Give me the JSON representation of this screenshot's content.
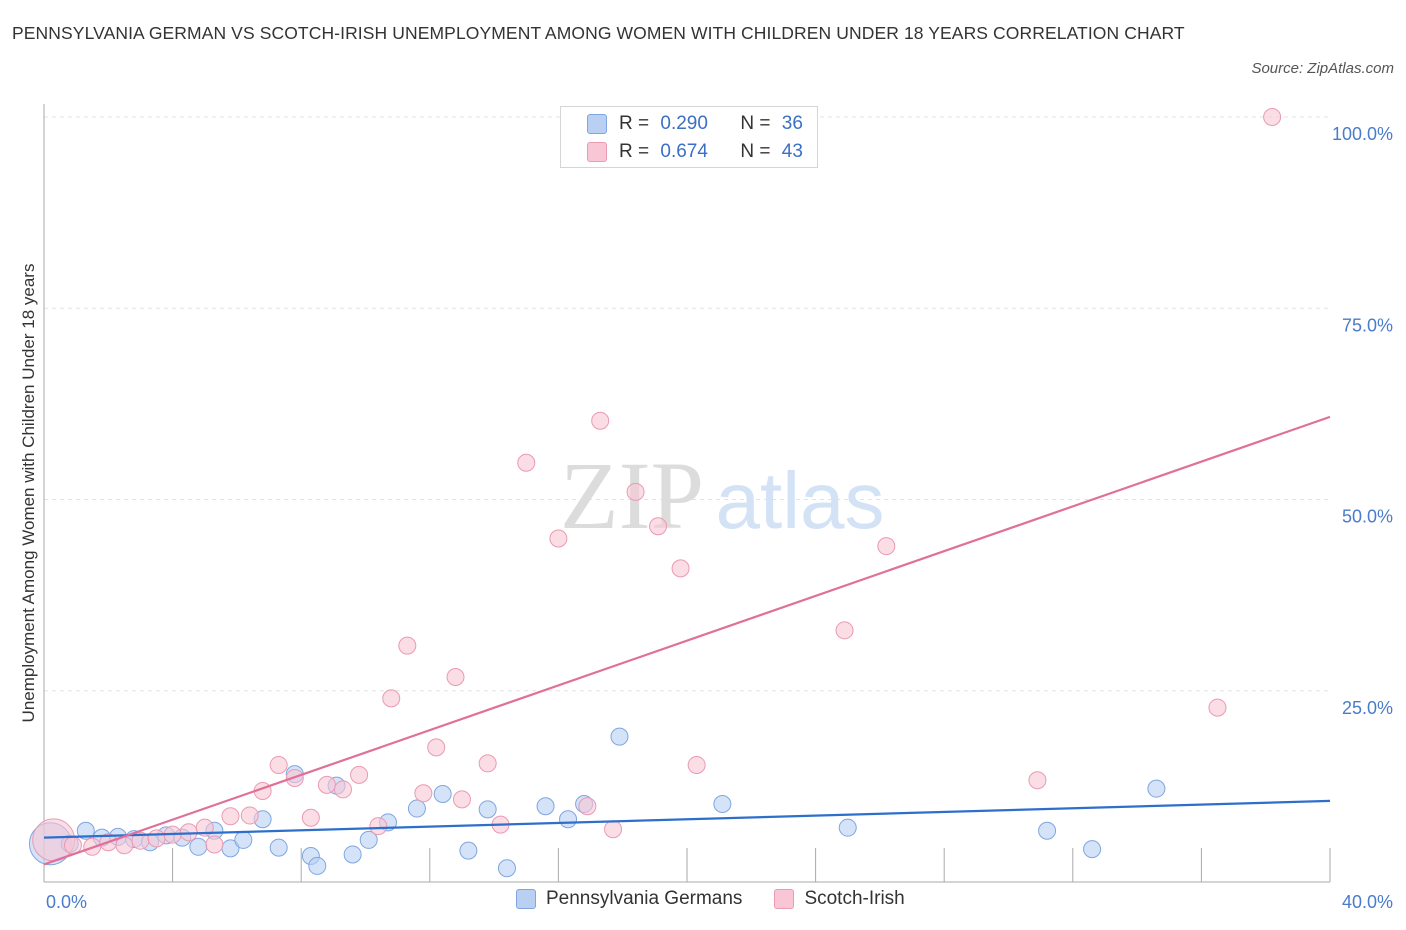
{
  "title": "PENNSYLVANIA GERMAN VS SCOTCH-IRISH UNEMPLOYMENT AMONG WOMEN WITH CHILDREN UNDER 18 YEARS CORRELATION CHART",
  "source": "Source: ZipAtlas.com",
  "watermark": {
    "zip": "ZIP",
    "atlas": "atlas"
  },
  "legend": {
    "rows": [
      {
        "r_label": "R =",
        "r_value": "0.290",
        "n_label": "N =",
        "n_value": "36"
      },
      {
        "r_label": "R =",
        "r_value": "0.674",
        "n_label": "N =",
        "n_value": "43"
      }
    ]
  },
  "colors": {
    "blue_fill": "#b9d0f3",
    "blue_stroke": "#7fa6e0",
    "blue_line": "#2f6fcc",
    "pink_fill": "#f8c6d5",
    "pink_stroke": "#ea9ab2",
    "pink_line": "#e0709a",
    "grid": "#e3e3e3",
    "tick_text": "#4a7cc9"
  },
  "chart_data": {
    "type": "scatter",
    "title": "PENNSYLVANIA GERMAN VS SCOTCH-IRISH UNEMPLOYMENT AMONG WOMEN WITH CHILDREN UNDER 18 YEARS CORRELATION CHART",
    "xlabel": "",
    "ylabel": "Unemployment Among Women with Children Under 18 years",
    "xlim": [
      0,
      40
    ],
    "ylim": [
      0,
      100
    ],
    "x_tick_labels": [
      "0.0%",
      "40.0%"
    ],
    "y_tick_labels": [
      {
        "value": 100,
        "label": "100.0%"
      },
      {
        "value": 75,
        "label": "75.0%"
      },
      {
        "value": 50,
        "label": "50.0%"
      },
      {
        "value": 25,
        "label": "25.0%"
      }
    ],
    "series": [
      {
        "name": "Pennsylvania Germans",
        "color": "blue",
        "R": 0.29,
        "N": 36,
        "trend": {
          "x": [
            0,
            40
          ],
          "y": [
            5.8,
            10.6
          ]
        },
        "points": [
          {
            "x": 0.2,
            "y": 5.0,
            "big": true
          },
          {
            "x": 0.8,
            "y": 5.0
          },
          {
            "x": 1.3,
            "y": 6.7
          },
          {
            "x": 1.8,
            "y": 5.8
          },
          {
            "x": 2.3,
            "y": 5.9
          },
          {
            "x": 2.8,
            "y": 5.6
          },
          {
            "x": 3.3,
            "y": 5.2
          },
          {
            "x": 3.8,
            "y": 6.1
          },
          {
            "x": 4.3,
            "y": 5.8
          },
          {
            "x": 4.8,
            "y": 4.6
          },
          {
            "x": 5.3,
            "y": 6.7
          },
          {
            "x": 5.8,
            "y": 4.4
          },
          {
            "x": 6.2,
            "y": 5.5
          },
          {
            "x": 6.8,
            "y": 8.2
          },
          {
            "x": 7.3,
            "y": 4.5
          },
          {
            "x": 7.8,
            "y": 14.1
          },
          {
            "x": 8.3,
            "y": 3.4
          },
          {
            "x": 8.5,
            "y": 2.1
          },
          {
            "x": 9.1,
            "y": 12.6
          },
          {
            "x": 9.6,
            "y": 3.6
          },
          {
            "x": 10.1,
            "y": 5.5
          },
          {
            "x": 10.7,
            "y": 7.8
          },
          {
            "x": 11.6,
            "y": 9.6
          },
          {
            "x": 12.4,
            "y": 11.5
          },
          {
            "x": 13.2,
            "y": 4.1
          },
          {
            "x": 13.8,
            "y": 9.5
          },
          {
            "x": 14.4,
            "y": 1.8
          },
          {
            "x": 15.6,
            "y": 9.9
          },
          {
            "x": 16.3,
            "y": 8.2
          },
          {
            "x": 16.8,
            "y": 10.2
          },
          {
            "x": 17.9,
            "y": 19.0
          },
          {
            "x": 21.1,
            "y": 10.2
          },
          {
            "x": 25.0,
            "y": 7.1
          },
          {
            "x": 31.2,
            "y": 6.7
          },
          {
            "x": 32.6,
            "y": 4.3
          },
          {
            "x": 34.6,
            "y": 12.2
          }
        ]
      },
      {
        "name": "Scotch-Irish",
        "color": "pink",
        "R": 0.674,
        "N": 43,
        "trend": {
          "x": [
            0,
            40
          ],
          "y": [
            2.3,
            60.8
          ]
        },
        "points": [
          {
            "x": 0.3,
            "y": 5.5,
            "big": true
          },
          {
            "x": 0.9,
            "y": 4.8
          },
          {
            "x": 1.5,
            "y": 4.6
          },
          {
            "x": 2.0,
            "y": 5.2
          },
          {
            "x": 2.5,
            "y": 4.8
          },
          {
            "x": 3.0,
            "y": 5.4
          },
          {
            "x": 3.5,
            "y": 5.7
          },
          {
            "x": 4.0,
            "y": 6.2
          },
          {
            "x": 4.5,
            "y": 6.5
          },
          {
            "x": 5.0,
            "y": 7.1
          },
          {
            "x": 5.3,
            "y": 4.9
          },
          {
            "x": 5.8,
            "y": 8.6
          },
          {
            "x": 6.4,
            "y": 8.7
          },
          {
            "x": 6.8,
            "y": 11.9
          },
          {
            "x": 7.3,
            "y": 15.3
          },
          {
            "x": 7.8,
            "y": 13.6
          },
          {
            "x": 8.3,
            "y": 8.4
          },
          {
            "x": 8.8,
            "y": 12.7
          },
          {
            "x": 9.3,
            "y": 12.1
          },
          {
            "x": 9.8,
            "y": 14.0
          },
          {
            "x": 10.4,
            "y": 7.3
          },
          {
            "x": 10.8,
            "y": 24.0
          },
          {
            "x": 11.3,
            "y": 30.9
          },
          {
            "x": 11.8,
            "y": 11.6
          },
          {
            "x": 12.2,
            "y": 17.6
          },
          {
            "x": 12.8,
            "y": 26.8
          },
          {
            "x": 13.0,
            "y": 10.8
          },
          {
            "x": 13.8,
            "y": 15.5
          },
          {
            "x": 14.2,
            "y": 7.5
          },
          {
            "x": 15.0,
            "y": 54.8
          },
          {
            "x": 16.0,
            "y": 44.9
          },
          {
            "x": 16.9,
            "y": 9.9
          },
          {
            "x": 17.3,
            "y": 60.3
          },
          {
            "x": 17.7,
            "y": 6.9
          },
          {
            "x": 18.4,
            "y": 51.0
          },
          {
            "x": 19.1,
            "y": 46.5
          },
          {
            "x": 19.8,
            "y": 41.0
          },
          {
            "x": 20.3,
            "y": 15.3
          },
          {
            "x": 24.9,
            "y": 32.9
          },
          {
            "x": 26.2,
            "y": 43.9
          },
          {
            "x": 30.9,
            "y": 13.3
          },
          {
            "x": 36.5,
            "y": 22.8
          },
          {
            "x": 38.2,
            "y": 100.0
          }
        ]
      }
    ],
    "legend": [
      "Pennsylvania Germans",
      "Scotch-Irish"
    ]
  }
}
